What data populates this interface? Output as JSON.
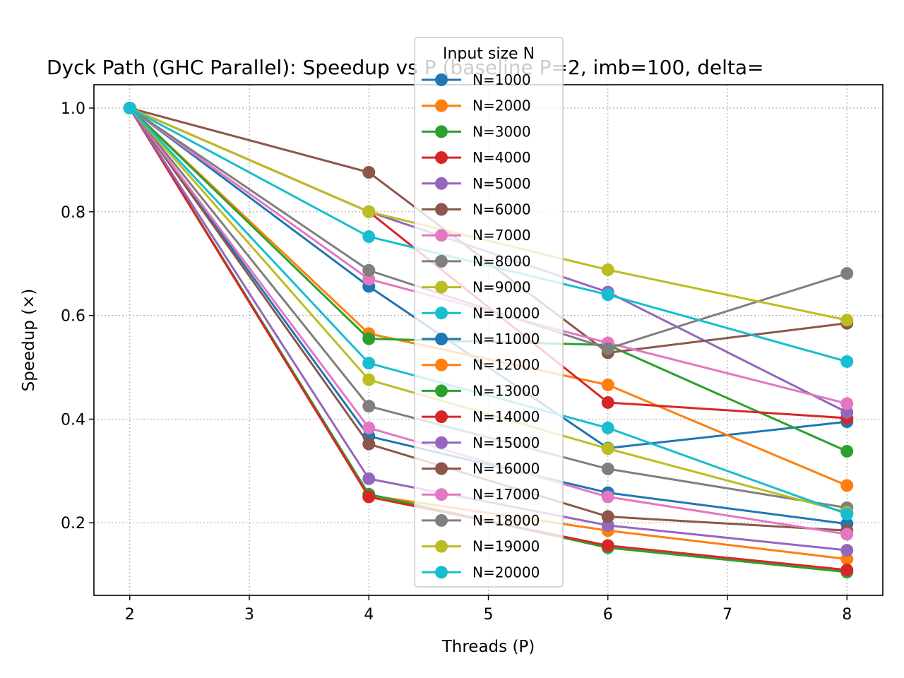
{
  "chart_data": {
    "type": "line",
    "title": "Dyck Path (GHC Parallel): Speedup vs P  (baseline P=2, imb=100, delta=",
    "xlabel": "Threads (P)",
    "ylabel": "Speedup (×)",
    "x": [
      2,
      4,
      6,
      8
    ],
    "xlim": [
      1.7,
      8.3
    ],
    "ylim": [
      0.06,
      1.045
    ],
    "x_ticks": [
      "2",
      "3",
      "4",
      "5",
      "6",
      "7",
      "8"
    ],
    "y_ticks": [
      "0.2",
      "0.4",
      "0.6",
      "0.8",
      "1.0"
    ],
    "grid": true,
    "legend": {
      "title": "Input size N",
      "placement": "top-center"
    },
    "series": [
      {
        "name": "N=1000",
        "color": "#1f77b4",
        "values": [
          1.0,
          0.656,
          0.344,
          0.395
        ]
      },
      {
        "name": "N=2000",
        "color": "#ff7f0e",
        "values": [
          1.0,
          0.565,
          0.466,
          0.272
        ]
      },
      {
        "name": "N=3000",
        "color": "#2ca02c",
        "values": [
          1.0,
          0.555,
          0.543,
          0.338
        ]
      },
      {
        "name": "N=4000",
        "color": "#d62728",
        "values": [
          1.0,
          0.8,
          0.432,
          0.402
        ]
      },
      {
        "name": "N=5000",
        "color": "#9467bd",
        "values": [
          1.0,
          0.8,
          0.645,
          0.413
        ]
      },
      {
        "name": "N=6000",
        "color": "#8c564b",
        "values": [
          1.0,
          0.876,
          0.528,
          0.585
        ]
      },
      {
        "name": "N=7000",
        "color": "#e377c2",
        "values": [
          1.0,
          0.67,
          0.547,
          0.43
        ]
      },
      {
        "name": "N=8000",
        "color": "#7f7f7f",
        "values": [
          1.0,
          0.687,
          0.536,
          0.681
        ]
      },
      {
        "name": "N=9000",
        "color": "#bcbd22",
        "values": [
          1.0,
          0.8,
          0.688,
          0.591
        ]
      },
      {
        "name": "N=10000",
        "color": "#17becf",
        "values": [
          1.0,
          0.752,
          0.64,
          0.511
        ]
      },
      {
        "name": "N=11000",
        "color": "#1f77b4",
        "values": [
          1.0,
          0.367,
          0.258,
          0.198
        ]
      },
      {
        "name": "N=12000",
        "color": "#ff7f0e",
        "values": [
          1.0,
          0.253,
          0.185,
          0.13
        ]
      },
      {
        "name": "N=13000",
        "color": "#2ca02c",
        "values": [
          1.0,
          0.255,
          0.152,
          0.105
        ]
      },
      {
        "name": "N=14000",
        "color": "#d62728",
        "values": [
          1.0,
          0.25,
          0.156,
          0.109
        ]
      },
      {
        "name": "N=15000",
        "color": "#9467bd",
        "values": [
          1.0,
          0.285,
          0.195,
          0.147
        ]
      },
      {
        "name": "N=16000",
        "color": "#8c564b",
        "values": [
          1.0,
          0.352,
          0.212,
          0.185
        ]
      },
      {
        "name": "N=17000",
        "color": "#e377c2",
        "values": [
          1.0,
          0.383,
          0.25,
          0.178
        ]
      },
      {
        "name": "N=18000",
        "color": "#7f7f7f",
        "values": [
          1.0,
          0.425,
          0.304,
          0.229
        ]
      },
      {
        "name": "N=19000",
        "color": "#bcbd22",
        "values": [
          1.0,
          0.476,
          0.343,
          0.22
        ]
      },
      {
        "name": "N=20000",
        "color": "#17becf",
        "values": [
          1.0,
          0.508,
          0.383,
          0.217
        ]
      }
    ]
  }
}
